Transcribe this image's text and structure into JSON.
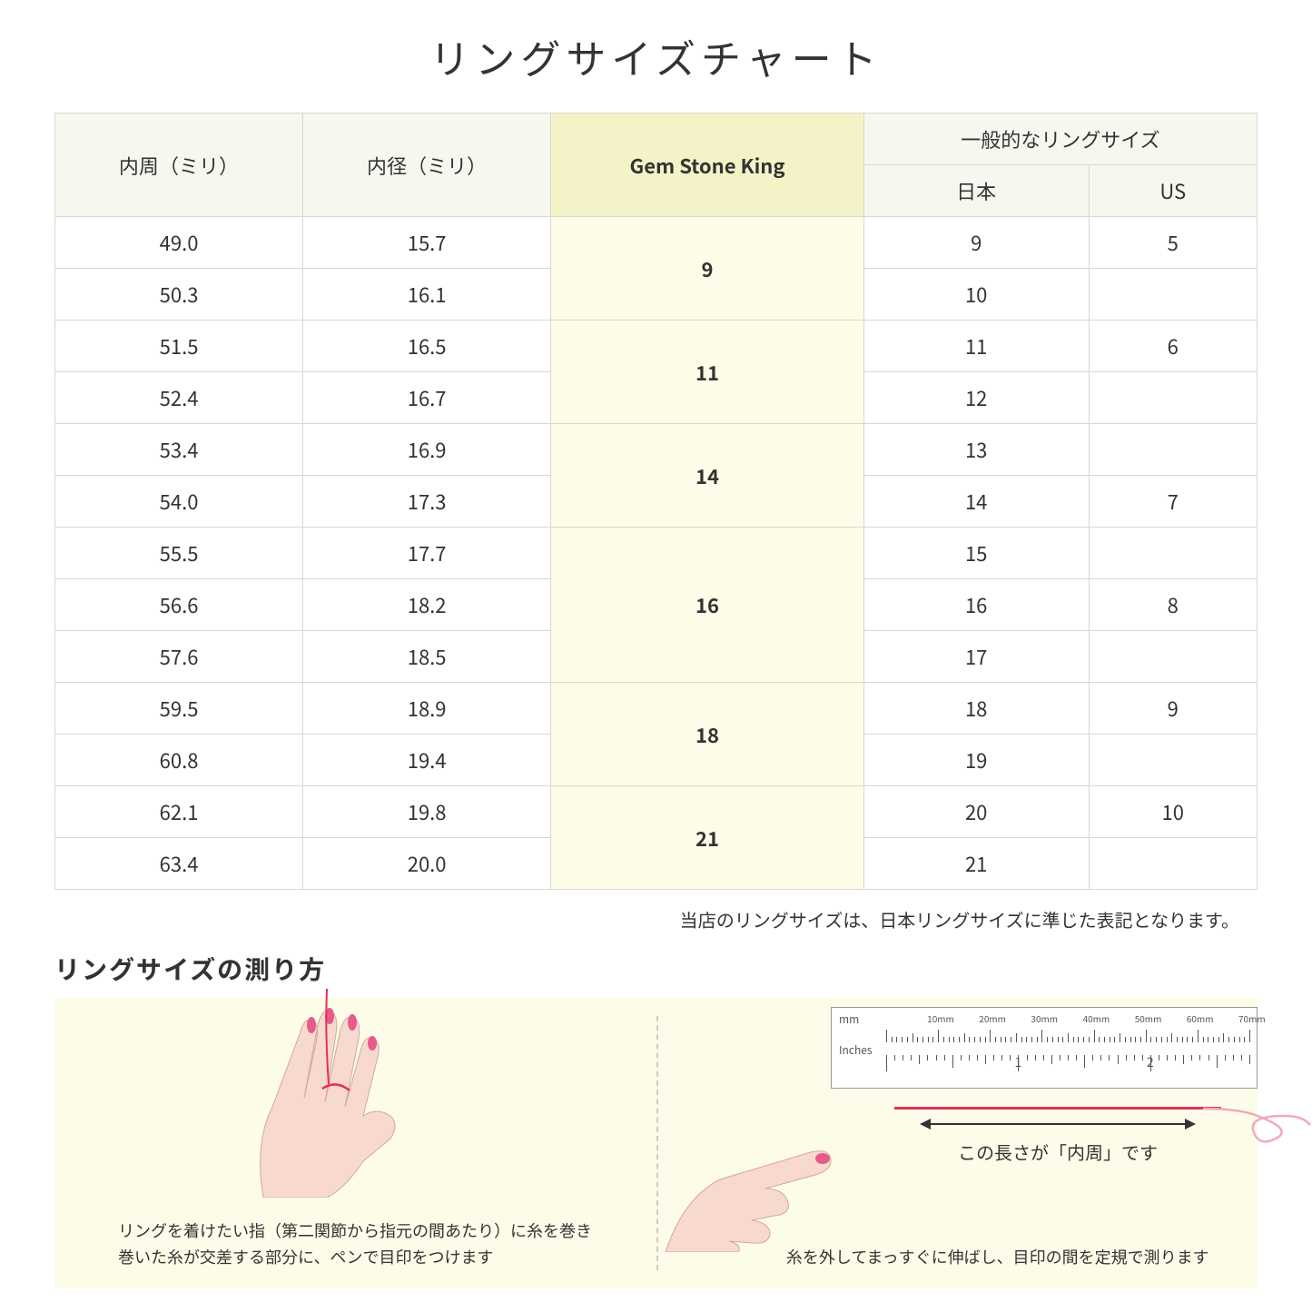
{
  "title": "リングサイズチャート",
  "headers": {
    "circumference": "内周（ミリ）",
    "diameter": "内径（ミリ）",
    "gsk": "Gem Stone King",
    "general": "一般的なリングサイズ",
    "japan": "日本",
    "us": "US"
  },
  "groups": [
    {
      "gsk": "9",
      "rows": [
        {
          "c": "49.0",
          "d": "15.7",
          "jp": "9",
          "us": "5"
        },
        {
          "c": "50.3",
          "d": "16.1",
          "jp": "10",
          "us": ""
        }
      ]
    },
    {
      "gsk": "11",
      "rows": [
        {
          "c": "51.5",
          "d": "16.5",
          "jp": "11",
          "us": "6"
        },
        {
          "c": "52.4",
          "d": "16.7",
          "jp": "12",
          "us": ""
        }
      ]
    },
    {
      "gsk": "14",
      "rows": [
        {
          "c": "53.4",
          "d": "16.9",
          "jp": "13",
          "us": ""
        },
        {
          "c": "54.0",
          "d": "17.3",
          "jp": "14",
          "us": "7"
        }
      ]
    },
    {
      "gsk": "16",
      "rows": [
        {
          "c": "55.5",
          "d": "17.7",
          "jp": "15",
          "us": ""
        },
        {
          "c": "56.6",
          "d": "18.2",
          "jp": "16",
          "us": "8"
        },
        {
          "c": "57.6",
          "d": "18.5",
          "jp": "17",
          "us": ""
        }
      ]
    },
    {
      "gsk": "18",
      "rows": [
        {
          "c": "59.5",
          "d": "18.9",
          "jp": "18",
          "us": "9"
        },
        {
          "c": "60.8",
          "d": "19.4",
          "jp": "19",
          "us": ""
        }
      ]
    },
    {
      "gsk": "21",
      "rows": [
        {
          "c": "62.1",
          "d": "19.8",
          "jp": "20",
          "us": "10"
        },
        {
          "c": "63.4",
          "d": "20.0",
          "jp": "21",
          "us": ""
        }
      ]
    }
  ],
  "note": "当店のリングサイズは、日本リングサイズに準じた表記となります。",
  "measure_title": "リングサイズの測り方",
  "instruction_left_1": "リングを着けたい指（第二関節から指元の間あたり）に糸を巻き",
  "instruction_left_2": "巻いた糸が交差する部分に、ペンで目印をつけます",
  "instruction_right": "糸を外してまっすぐに伸ばし、目印の間を定規で測ります",
  "ruler": {
    "mm_label": "mm",
    "in_label": "Inches",
    "mm_marks": [
      "10mm",
      "20mm",
      "30mm",
      "40mm",
      "50mm",
      "60mm",
      "70mm"
    ],
    "in_marks": [
      "1",
      "2"
    ]
  },
  "arrow_label": "この長さが「内周」です",
  "colors": {
    "header_bg": "#f7f7f0",
    "highlight_bg": "#f4f3c7",
    "gsk_cell_bg": "#fdfce8",
    "border": "#d8d8d0",
    "panel_bg": "#fdfce8",
    "skin": "#f7d9cf",
    "nail": "#e85a8a",
    "thread": "#e62e5c"
  }
}
